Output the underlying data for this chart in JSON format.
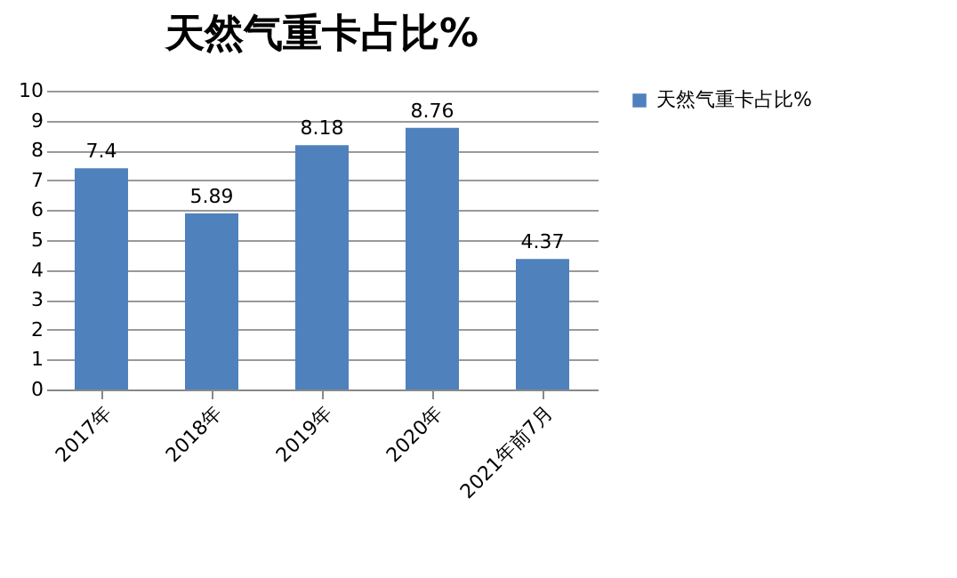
{
  "chart_data": {
    "type": "bar",
    "title": "天然气重卡占比%",
    "categories": [
      "2017年",
      "2018年",
      "2019年",
      "2020年",
      "2021年前7月"
    ],
    "series": [
      {
        "name": "天然气重卡占比%",
        "color": "#4f81bd",
        "values": [
          7.4,
          5.89,
          8.18,
          8.76,
          4.37
        ]
      }
    ],
    "ylim": [
      0,
      10
    ],
    "yticks": [
      0,
      1,
      2,
      3,
      4,
      5,
      6,
      7,
      8,
      9,
      10
    ],
    "grid": "y",
    "legend": "right",
    "data_labels": true
  }
}
